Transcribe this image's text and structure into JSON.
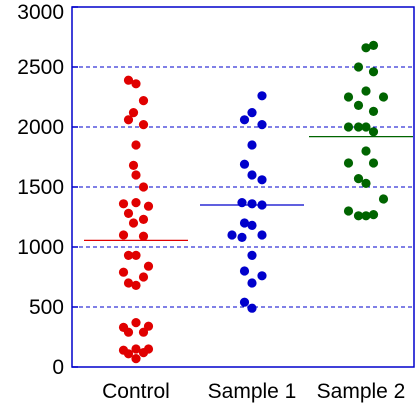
{
  "chart_data": {
    "type": "scatter",
    "title": "",
    "xlabel": "",
    "ylabel": "",
    "ylim": [
      0,
      3000
    ],
    "yticks": [
      0,
      500,
      1000,
      1500,
      2000,
      2500,
      3000
    ],
    "ytick_labels": [
      "0",
      "500",
      "1000",
      "1500",
      "2000",
      "2500",
      "3000"
    ],
    "grid": "horizontal dashed",
    "categories": [
      "Control",
      "Sample 1",
      "Sample 2"
    ],
    "series": [
      {
        "category": "Control",
        "color": "#e00000",
        "mean": 1055,
        "points": [
          [
            -0.15,
            2390
          ],
          [
            0.0,
            2360
          ],
          [
            0.15,
            2220
          ],
          [
            -0.05,
            2120
          ],
          [
            -0.15,
            2060
          ],
          [
            0.15,
            2020
          ],
          [
            0.0,
            1850
          ],
          [
            -0.05,
            1680
          ],
          [
            0.0,
            1600
          ],
          [
            0.15,
            1500
          ],
          [
            -0.25,
            1360
          ],
          [
            0.0,
            1370
          ],
          [
            0.25,
            1340
          ],
          [
            -0.15,
            1280
          ],
          [
            0.15,
            1230
          ],
          [
            -0.05,
            1200
          ],
          [
            -0.25,
            1100
          ],
          [
            0.15,
            1090
          ],
          [
            -0.15,
            930
          ],
          [
            0.0,
            930
          ],
          [
            -0.25,
            790
          ],
          [
            0.25,
            840
          ],
          [
            -0.15,
            700
          ],
          [
            0.0,
            680
          ],
          [
            0.15,
            750
          ],
          [
            -0.25,
            330
          ],
          [
            0.0,
            370
          ],
          [
            0.25,
            340
          ],
          [
            -0.15,
            290
          ],
          [
            0.15,
            290
          ],
          [
            -0.25,
            140
          ],
          [
            -0.15,
            110
          ],
          [
            0.0,
            150
          ],
          [
            0.15,
            120
          ],
          [
            0.25,
            150
          ],
          [
            0.0,
            70
          ]
        ]
      },
      {
        "category": "Sample 1",
        "color": "#0000cc",
        "mean": 1350,
        "points": [
          [
            -0.15,
            2060
          ],
          [
            0.0,
            2120
          ],
          [
            0.2,
            2260
          ],
          [
            0.2,
            2020
          ],
          [
            0.0,
            1850
          ],
          [
            -0.15,
            1690
          ],
          [
            0.0,
            1600
          ],
          [
            0.2,
            1560
          ],
          [
            -0.2,
            1370
          ],
          [
            0.0,
            1360
          ],
          [
            0.2,
            1350
          ],
          [
            -0.15,
            1200
          ],
          [
            0.0,
            1180
          ],
          [
            -0.4,
            1100
          ],
          [
            -0.2,
            1080
          ],
          [
            0.2,
            1100
          ],
          [
            0.0,
            930
          ],
          [
            -0.15,
            800
          ],
          [
            0.2,
            760
          ],
          [
            0.0,
            700
          ],
          [
            -0.15,
            540
          ],
          [
            0.0,
            490
          ]
        ]
      },
      {
        "category": "Sample 2",
        "color": "#006400",
        "mean": 1920,
        "points": [
          [
            0.1,
            2660
          ],
          [
            0.25,
            2680
          ],
          [
            -0.05,
            2500
          ],
          [
            0.25,
            2460
          ],
          [
            -0.25,
            2250
          ],
          [
            0.1,
            2300
          ],
          [
            0.45,
            2250
          ],
          [
            -0.05,
            2180
          ],
          [
            0.25,
            2130
          ],
          [
            -0.25,
            2000
          ],
          [
            -0.05,
            2000
          ],
          [
            0.1,
            2000
          ],
          [
            0.25,
            1960
          ],
          [
            0.1,
            1800
          ],
          [
            -0.25,
            1700
          ],
          [
            0.25,
            1700
          ],
          [
            -0.05,
            1570
          ],
          [
            0.1,
            1530
          ],
          [
            0.45,
            1400
          ],
          [
            -0.25,
            1300
          ],
          [
            -0.05,
            1260
          ],
          [
            0.1,
            1260
          ],
          [
            0.25,
            1270
          ]
        ]
      }
    ]
  }
}
